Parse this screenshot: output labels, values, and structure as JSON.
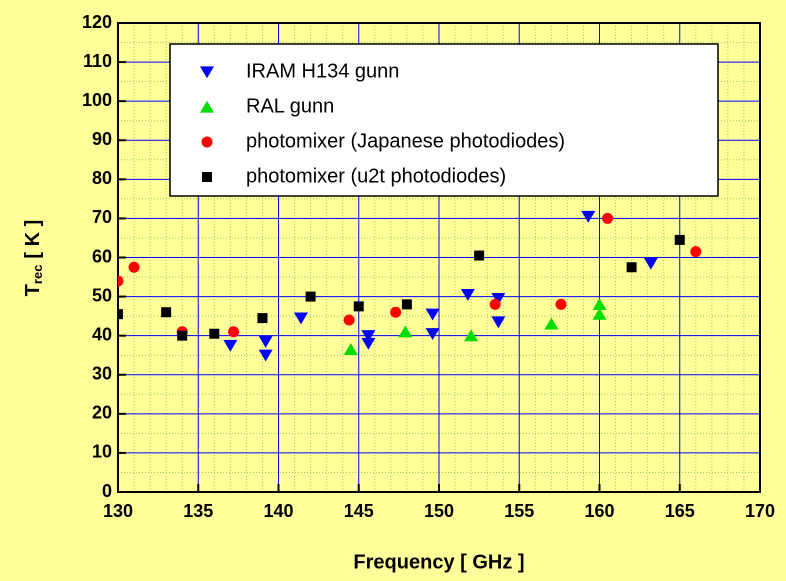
{
  "chart_data": {
    "type": "scatter",
    "x_label": "Frequency [ GHz ]",
    "y_label": {
      "main": "T",
      "sub": "rec",
      "unit": "[ K ]"
    },
    "xlim": [
      130,
      170
    ],
    "xticks": [
      130,
      135,
      140,
      145,
      150,
      155,
      160,
      165,
      170
    ],
    "ylim": [
      0,
      120
    ],
    "yticks": [
      0,
      10,
      20,
      30,
      40,
      50,
      60,
      70,
      80,
      90,
      100,
      110,
      120
    ],
    "xminorticks": [
      131,
      132,
      133,
      134,
      136,
      137,
      138,
      139,
      141,
      142,
      143,
      144,
      146,
      147,
      148,
      149,
      151,
      152,
      153,
      154,
      156,
      157,
      158,
      159,
      161,
      162,
      163,
      164,
      166,
      167,
      168,
      169
    ],
    "yminorticks": [
      5,
      15,
      25,
      35,
      45,
      55,
      65,
      75,
      85,
      95,
      105,
      115
    ],
    "grid": true,
    "legend": "upper center",
    "series": [
      {
        "name": "IRAM H134 gunn",
        "color": "#0000ff",
        "marker": "triangle-down",
        "x": [
          137.0,
          139.2,
          139.2,
          141.4,
          145.6,
          145.6,
          149.6,
          149.6,
          151.8,
          153.7,
          153.7,
          159.3,
          163.2
        ],
        "values": [
          37.5,
          38.5,
          35,
          44.5,
          40,
          38,
          45.5,
          40.5,
          50.5,
          49.5,
          43.5,
          70.5,
          58.5
        ]
      },
      {
        "name": "RAL gunn",
        "color": "#00dd00",
        "marker": "triangle-up",
        "x": [
          144.5,
          147.9,
          152.0,
          157.0,
          160.0,
          160.0
        ],
        "values": [
          36.5,
          41,
          40,
          43,
          48,
          45.5
        ]
      },
      {
        "name": "photomixer (Japanese photodiodes)",
        "color": "#ff0000",
        "marker": "circle",
        "x": [
          130.0,
          131.0,
          134.0,
          137.2,
          144.4,
          147.3,
          153.5,
          157.6,
          160.5,
          166.0
        ],
        "values": [
          54,
          57.5,
          41,
          41,
          44,
          46,
          48,
          48,
          70,
          61.5
        ]
      },
      {
        "name": "photomixer (u2t photodiodes)",
        "color": "#000000",
        "marker": "square",
        "x": [
          130.0,
          133.0,
          134.0,
          136.0,
          139.0,
          142.0,
          145.0,
          148.0,
          152.5,
          162.0,
          165.0
        ],
        "values": [
          45.5,
          46,
          40,
          40.5,
          44.5,
          50,
          47.5,
          48,
          60.5,
          57.5,
          64.5
        ]
      }
    ]
  }
}
